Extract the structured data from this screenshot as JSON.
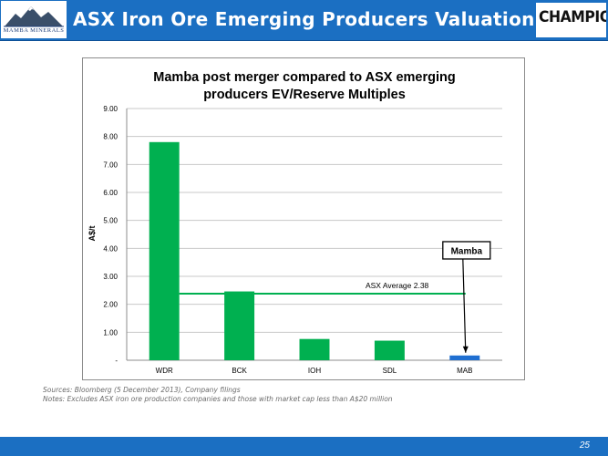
{
  "header": {
    "title": "ASX Iron Ore Emerging Producers Valuation",
    "left_logo_text": "MAMBA MINERALS",
    "right_logo_text": "CHAMPION",
    "colors": {
      "header_bar": "#1b6fc2",
      "title_text": "#ffffff"
    }
  },
  "chart_data": {
    "type": "bar",
    "title": "Mamba post merger compared to ASX emerging producers EV/Reserve Multiples",
    "title_lines": [
      "Mamba post merger compared to ASX emerging",
      "producers EV/Reserve Multiples"
    ],
    "xlabel": "",
    "ylabel": "A$/t",
    "categories": [
      "WDR",
      "BCK",
      "IOH",
      "SDL",
      "MAB"
    ],
    "values": [
      7.8,
      2.46,
      0.76,
      0.7,
      0.17
    ],
    "bar_colors": [
      "#00b050",
      "#00b050",
      "#00b050",
      "#00b050",
      "#1f6fd1"
    ],
    "ylim": [
      0,
      9
    ],
    "yticks": [
      0,
      1,
      2,
      3,
      4,
      5,
      6,
      7,
      8,
      9
    ],
    "ytick_labels": [
      "-",
      "1.00",
      "2.00",
      "3.00",
      "4.00",
      "5.00",
      "6.00",
      "7.00",
      "8.00",
      "9.00"
    ],
    "grid": true,
    "legend": "none",
    "reference_line": {
      "label": "ASX Average 2.38",
      "value": 2.38,
      "color": "#00b050"
    },
    "callout": {
      "label": "Mamba",
      "target": "MAB"
    }
  },
  "notes": {
    "sources": "Sources: Bloomberg (5 December 2013), Company filings",
    "notes": "Notes: Excludes ASX iron ore production companies and those with market cap less than A$20 million"
  },
  "footer": {
    "page_number": "25"
  }
}
